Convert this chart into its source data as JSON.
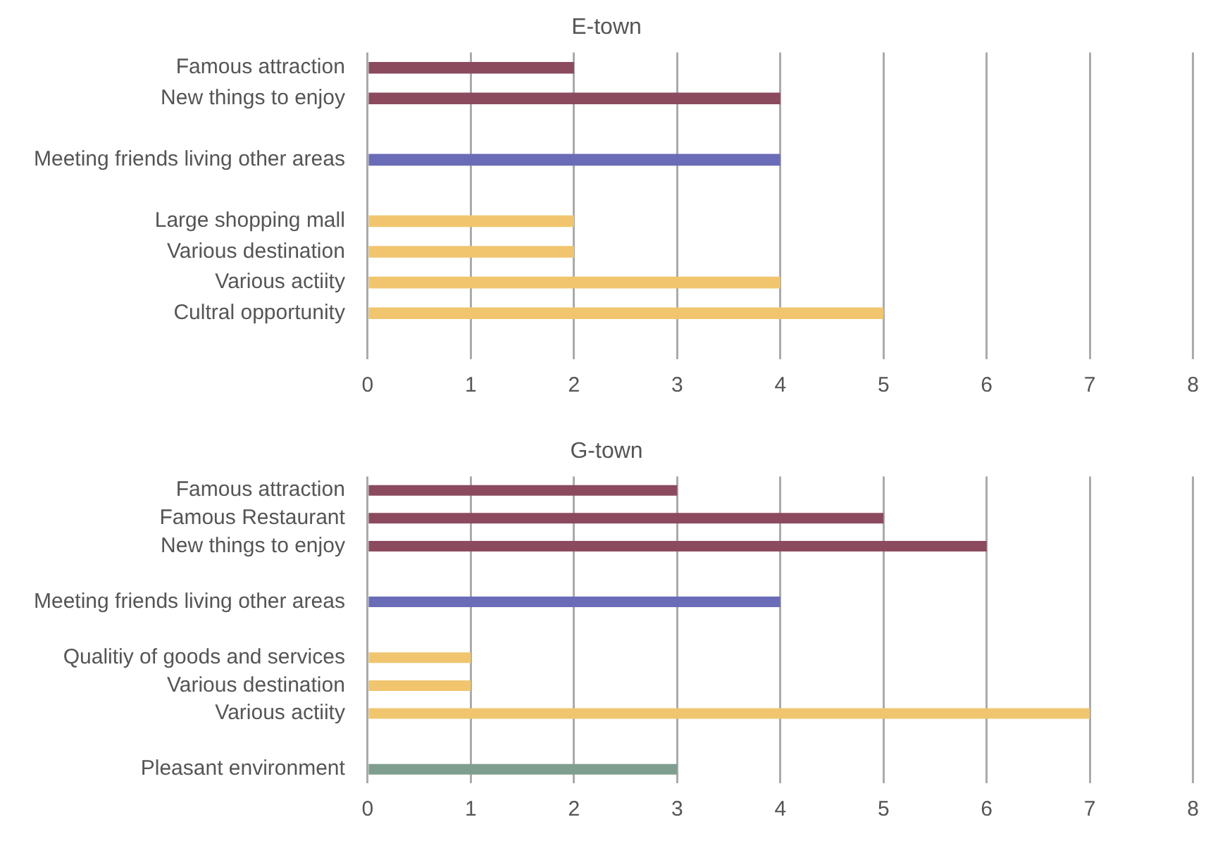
{
  "chart_data": [
    {
      "type": "bar",
      "title": "E-town",
      "orientation": "horizontal",
      "categories": [
        "Famous attraction",
        "New things to enjoy",
        null,
        "Meeting friends living other areas",
        null,
        "Large shopping mall",
        "Various destination",
        "Various actiity",
        "Cultral opportunity",
        null
      ],
      "values": [
        2,
        4,
        null,
        4,
        null,
        2,
        2,
        4,
        5,
        null
      ],
      "colors": [
        "#8b4a5e",
        "#8b4a5e",
        "#8b4a5e",
        "#6a6cb8",
        "#6a6cb8",
        "#f0c56e",
        "#f0c56e",
        "#f0c56e",
        "#f0c56e",
        "#f0c56e"
      ],
      "xlim": [
        0,
        8
      ],
      "xticks": [
        0,
        1,
        2,
        3,
        4,
        5,
        6,
        7,
        8
      ],
      "grid": "x",
      "legend": false
    },
    {
      "type": "bar",
      "title": "G-town",
      "orientation": "horizontal",
      "categories": [
        "Famous attraction",
        "Famous Restaurant",
        "New things to enjoy",
        null,
        "Meeting friends living other areas",
        null,
        "Qualitiy of goods and services",
        "Various destination",
        "Various actiity",
        null,
        "Pleasant environment"
      ],
      "values": [
        3,
        5,
        6,
        null,
        4,
        null,
        1,
        1,
        7,
        null,
        3
      ],
      "colors": [
        "#8b4a5e",
        "#8b4a5e",
        "#8b4a5e",
        "#8b4a5e",
        "#6a6cb8",
        "#6a6cb8",
        "#f0c56e",
        "#f0c56e",
        "#f0c56e",
        "#f0c56e",
        "#7f9e8f"
      ],
      "xlim": [
        0,
        8
      ],
      "xticks": [
        0,
        1,
        2,
        3,
        4,
        5,
        6,
        7,
        8
      ],
      "grid": "x",
      "legend": false
    }
  ]
}
